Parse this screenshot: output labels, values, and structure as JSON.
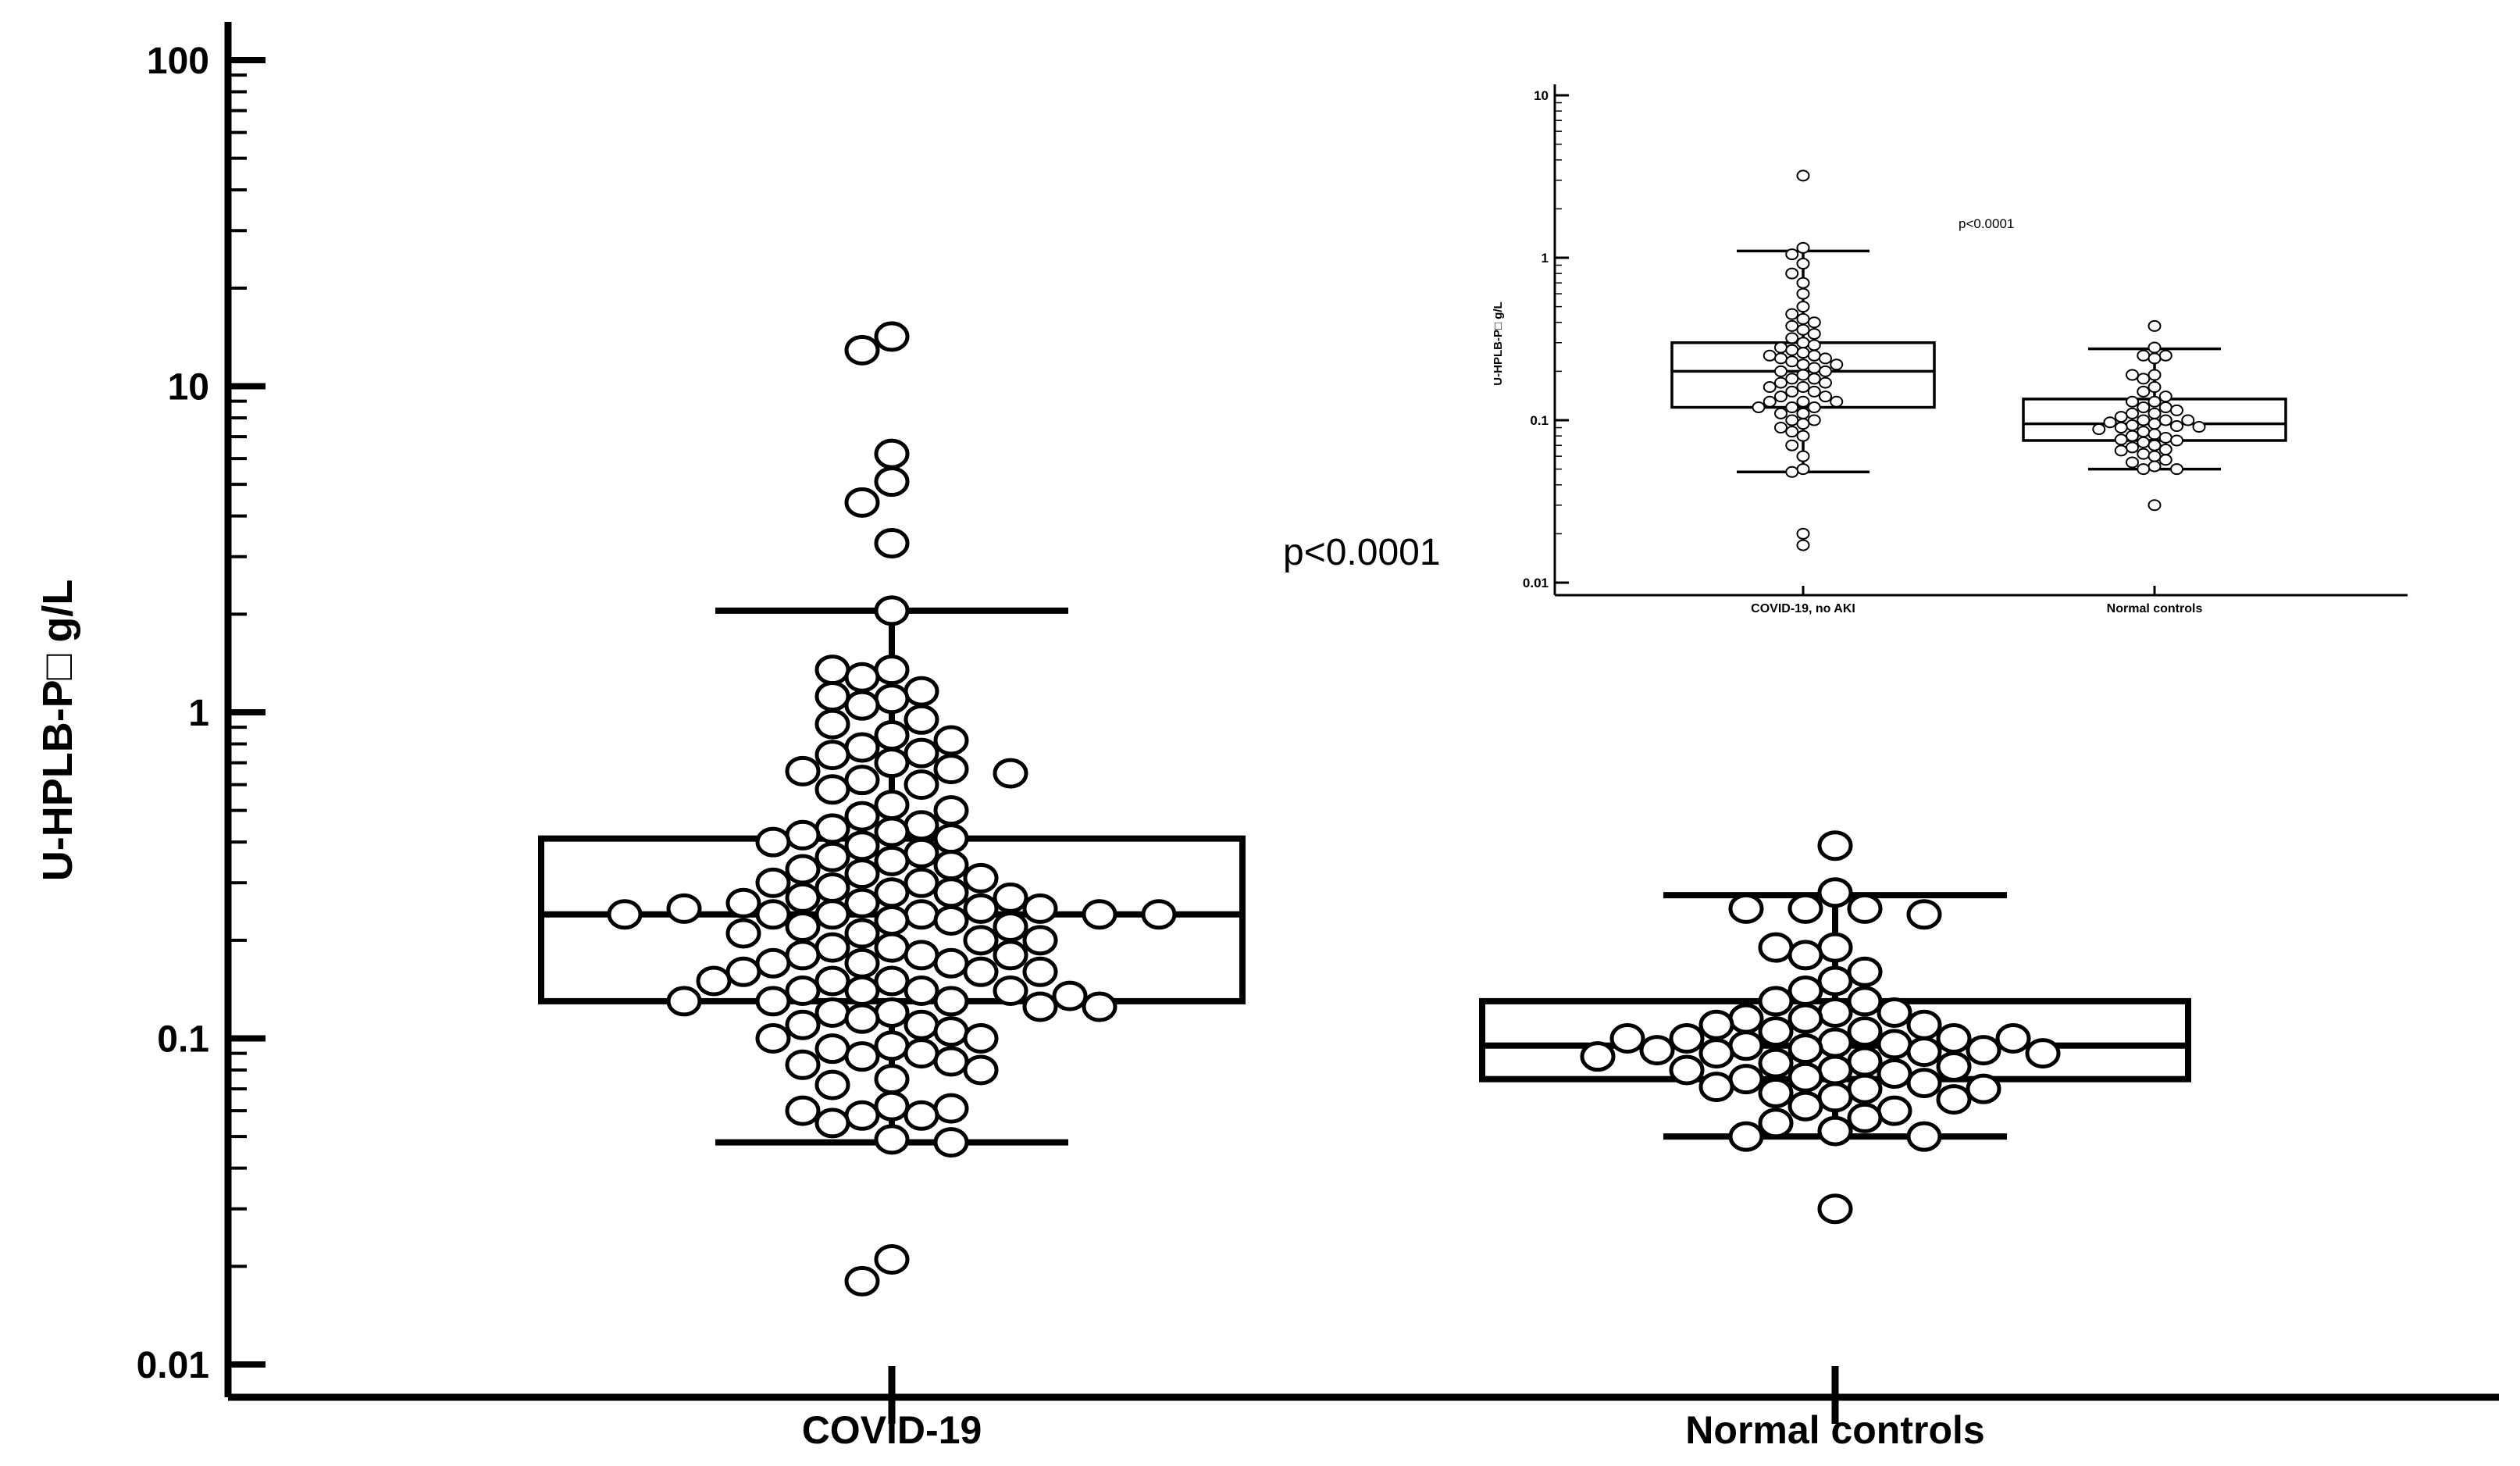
{
  "chart_data": [
    {
      "type": "box",
      "ylabel": "U-HPLB-P□ g/L",
      "yscale": "log",
      "ylim": [
        0.01,
        100
      ],
      "ytick_labels": [
        "0.01",
        "0.1",
        "1",
        "10",
        "100"
      ],
      "yticks": [
        0.01,
        0.1,
        1,
        10,
        100
      ],
      "categories": [
        "COVID-19",
        "Normal controls"
      ],
      "annotation": "p<0.0001",
      "boxes": [
        {
          "category": "COVID-19",
          "whisker_low": 0.048,
          "q1": 0.13,
          "median": 0.24,
          "q3": 0.41,
          "whisker_high": 2.05,
          "points": [
            14.2,
            12.9,
            6.2,
            5.1,
            4.4,
            3.3,
            2.05,
            1.35,
            1.35,
            1.28,
            1.16,
            1.12,
            1.1,
            1.05,
            0.95,
            0.92,
            0.85,
            0.82,
            0.78,
            0.75,
            0.74,
            0.7,
            0.67,
            0.66,
            0.65,
            0.62,
            0.6,
            0.58,
            0.52,
            0.5,
            0.48,
            0.45,
            0.44,
            0.43,
            0.42,
            0.41,
            0.4,
            0.39,
            0.37,
            0.36,
            0.35,
            0.34,
            0.33,
            0.32,
            0.31,
            0.3,
            0.3,
            0.29,
            0.28,
            0.28,
            0.27,
            0.27,
            0.26,
            0.26,
            0.25,
            0.25,
            0.25,
            0.24,
            0.24,
            0.24,
            0.24,
            0.24,
            0.24,
            0.23,
            0.23,
            0.22,
            0.22,
            0.21,
            0.21,
            0.2,
            0.2,
            0.19,
            0.19,
            0.18,
            0.18,
            0.18,
            0.17,
            0.17,
            0.17,
            0.16,
            0.16,
            0.16,
            0.15,
            0.15,
            0.15,
            0.14,
            0.14,
            0.14,
            0.14,
            0.135,
            0.13,
            0.13,
            0.13,
            0.125,
            0.125,
            0.12,
            0.12,
            0.115,
            0.11,
            0.11,
            0.105,
            0.1,
            0.1,
            0.095,
            0.093,
            0.09,
            0.088,
            0.085,
            0.083,
            0.08,
            0.075,
            0.072,
            0.062,
            0.061,
            0.06,
            0.058,
            0.058,
            0.055,
            0.049,
            0.048,
            0.021,
            0.018
          ]
        },
        {
          "category": "Normal controls",
          "whisker_low": 0.05,
          "q1": 0.075,
          "median": 0.095,
          "q3": 0.13,
          "whisker_high": 0.275,
          "points": [
            0.39,
            0.28,
            0.25,
            0.25,
            0.25,
            0.24,
            0.19,
            0.19,
            0.18,
            0.16,
            0.15,
            0.14,
            0.13,
            0.13,
            0.12,
            0.12,
            0.115,
            0.115,
            0.11,
            0.11,
            0.105,
            0.105,
            0.1,
            0.1,
            0.1,
            0.1,
            0.097,
            0.096,
            0.095,
            0.093,
            0.092,
            0.092,
            0.091,
            0.09,
            0.09,
            0.088,
            0.085,
            0.084,
            0.082,
            0.08,
            0.08,
            0.078,
            0.076,
            0.075,
            0.073,
            0.071,
            0.07,
            0.07,
            0.068,
            0.066,
            0.065,
            0.062,
            0.06,
            0.057,
            0.055,
            0.052,
            0.05,
            0.05,
            0.03
          ]
        }
      ]
    },
    {
      "type": "box",
      "inset": true,
      "ylabel": "U-HPLB-P□ g/L",
      "yscale": "log",
      "ylim": [
        0.01,
        10
      ],
      "ytick_labels": [
        "0.01",
        "0.1",
        "1",
        "10"
      ],
      "yticks": [
        0.01,
        0.1,
        1,
        10
      ],
      "categories": [
        "COVID-19, no AKI",
        "Normal controls"
      ],
      "annotation": "p<0.0001",
      "boxes": [
        {
          "category": "COVID-19, no AKI",
          "whisker_low": 0.048,
          "q1": 0.12,
          "median": 0.2,
          "q3": 0.3,
          "whisker_high": 1.1,
          "points": [
            3.2,
            1.15,
            1.05,
            0.92,
            0.8,
            0.7,
            0.6,
            0.5,
            0.45,
            0.42,
            0.4,
            0.38,
            0.36,
            0.34,
            0.32,
            0.3,
            0.29,
            0.28,
            0.27,
            0.26,
            0.25,
            0.25,
            0.24,
            0.24,
            0.23,
            0.22,
            0.22,
            0.21,
            0.2,
            0.2,
            0.19,
            0.18,
            0.18,
            0.17,
            0.17,
            0.16,
            0.16,
            0.15,
            0.15,
            0.14,
            0.14,
            0.13,
            0.13,
            0.13,
            0.12,
            0.12,
            0.12,
            0.11,
            0.11,
            0.1,
            0.1,
            0.095,
            0.09,
            0.085,
            0.08,
            0.07,
            0.06,
            0.05,
            0.048,
            0.02,
            0.017
          ]
        },
        {
          "category": "Normal controls",
          "whisker_low": 0.05,
          "q1": 0.075,
          "median": 0.095,
          "q3": 0.135,
          "whisker_high": 0.275,
          "points": [
            0.38,
            0.28,
            0.25,
            0.25,
            0.24,
            0.19,
            0.19,
            0.18,
            0.16,
            0.15,
            0.14,
            0.13,
            0.13,
            0.12,
            0.12,
            0.115,
            0.11,
            0.11,
            0.105,
            0.1,
            0.1,
            0.1,
            0.097,
            0.095,
            0.093,
            0.092,
            0.091,
            0.09,
            0.088,
            0.085,
            0.082,
            0.08,
            0.078,
            0.076,
            0.075,
            0.073,
            0.07,
            0.068,
            0.066,
            0.065,
            0.062,
            0.06,
            0.057,
            0.055,
            0.052,
            0.05,
            0.05,
            0.03
          ]
        }
      ]
    }
  ]
}
